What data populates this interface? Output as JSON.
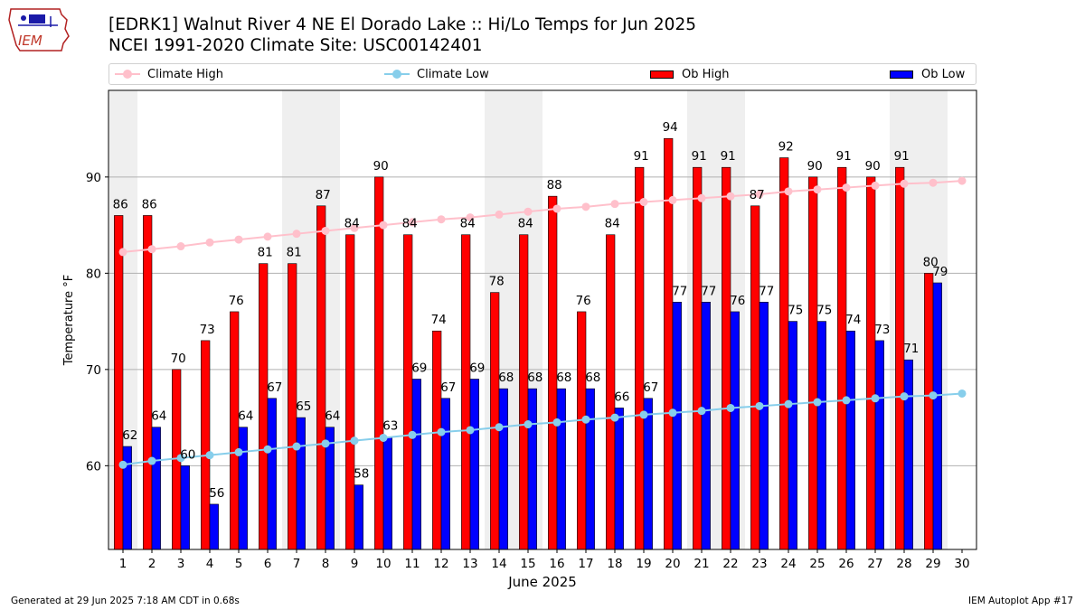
{
  "logo": {
    "text": "IEM"
  },
  "title_line1": "[EDRK1] Walnut River 4 NE El Dorado Lake :: Hi/Lo Temps for Jun 2025",
  "title_line2": "NCEI 1991-2020 Climate Site: USC00142401",
  "legend": [
    {
      "label": "Climate High",
      "kind": "line",
      "color": "#ffc0cb"
    },
    {
      "label": "Climate Low",
      "kind": "line",
      "color": "#87ceeb"
    },
    {
      "label": "Ob High",
      "kind": "bar",
      "color": "#ff0000"
    },
    {
      "label": "Ob Low",
      "kind": "bar",
      "color": "#0000ff"
    }
  ],
  "footer_left": "Generated at 29 Jun 2025 7:18 AM CDT in 0.68s",
  "footer_right": "IEM Autoplot App #17",
  "chart_data": {
    "type": "bar",
    "xlabel": "June 2025",
    "ylabel": "Temperature °F",
    "ylim": [
      51.3,
      99.0
    ],
    "yticks": [
      60,
      70,
      80,
      90
    ],
    "grid": "horizontal",
    "days": [
      1,
      2,
      3,
      4,
      5,
      6,
      7,
      8,
      9,
      10,
      11,
      12,
      13,
      14,
      15,
      16,
      17,
      18,
      19,
      20,
      21,
      22,
      23,
      24,
      25,
      26,
      27,
      28,
      29,
      30
    ],
    "weekend_days": [
      1,
      7,
      8,
      14,
      15,
      21,
      22,
      28,
      29
    ],
    "ob_high": [
      86,
      86,
      70,
      73,
      76,
      81,
      81,
      87,
      84,
      90,
      84,
      74,
      84,
      78,
      84,
      88,
      76,
      84,
      91,
      94,
      91,
      91,
      87,
      92,
      90,
      91,
      90,
      91,
      80
    ],
    "ob_high_labels": [
      "86",
      "86",
      "70",
      "73",
      "76",
      "81",
      "81",
      "87",
      "84",
      "90",
      "84",
      "74",
      "84",
      "78",
      "84",
      "88",
      "76",
      "84",
      "91",
      "94",
      "91",
      "91",
      "87",
      "92",
      "90",
      "91",
      "90",
      "91",
      "80"
    ],
    "ob_low": [
      62,
      64,
      60,
      56,
      64,
      67,
      65,
      64,
      58,
      63,
      69,
      67,
      69,
      68,
      68,
      68,
      68,
      66,
      67,
      77,
      77,
      76,
      77,
      75,
      75,
      74,
      73,
      71,
      79
    ],
    "ob_low_labels": [
      "62",
      "64",
      "60",
      "56",
      "64",
      "67",
      "65",
      "64",
      "58",
      "63",
      "69",
      "67",
      "69",
      "68",
      "68",
      "68",
      "68",
      "66",
      "67",
      "77",
      "77",
      "76",
      "77",
      "75",
      "75",
      "74",
      "73",
      "71",
      "79"
    ],
    "climate_high": [
      82.2,
      82.5,
      82.8,
      83.2,
      83.5,
      83.8,
      84.1,
      84.4,
      84.7,
      85.0,
      85.3,
      85.6,
      85.8,
      86.1,
      86.4,
      86.7,
      86.9,
      87.2,
      87.4,
      87.6,
      87.8,
      88.0,
      88.2,
      88.5,
      88.7,
      88.9,
      89.1,
      89.3,
      89.4,
      89.6
    ],
    "climate_low": [
      60.1,
      60.5,
      60.8,
      61.1,
      61.4,
      61.7,
      62.0,
      62.3,
      62.6,
      62.9,
      63.2,
      63.5,
      63.7,
      64.0,
      64.3,
      64.5,
      64.8,
      65.0,
      65.3,
      65.5,
      65.7,
      66.0,
      66.2,
      66.4,
      66.6,
      66.8,
      67.0,
      67.2,
      67.3,
      67.5
    ]
  }
}
